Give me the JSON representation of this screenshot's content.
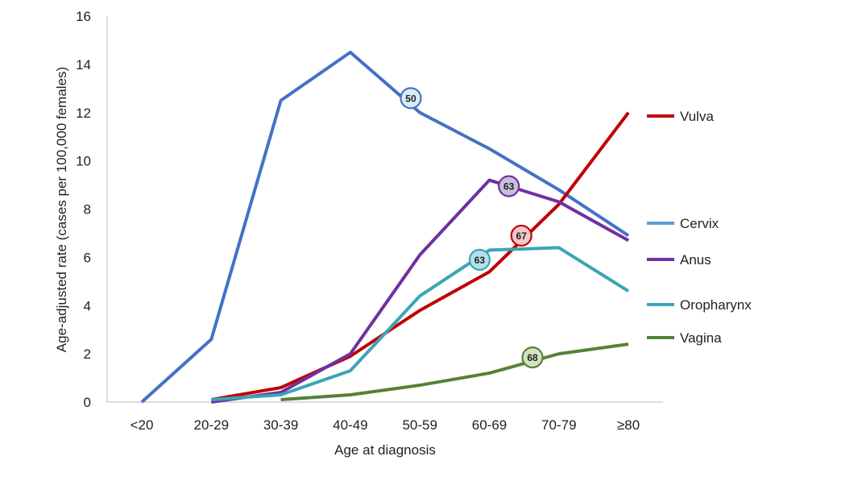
{
  "chart_data": {
    "type": "line",
    "title": "",
    "xlabel": "Age at diagnosis",
    "ylabel": "Age-adjusted rate (cases per 100,000 females)",
    "categories": [
      "<20",
      "20-29",
      "30-39",
      "40-49",
      "50-59",
      "60-69",
      "70-79",
      "≥80"
    ],
    "ylim": [
      0,
      16
    ],
    "yticks": [
      "0",
      "2",
      "4",
      "6",
      "8",
      "10",
      "12",
      "14",
      "16"
    ],
    "grid": false,
    "legend_placement": "right",
    "series": [
      {
        "name": "Cervix",
        "color": "#4472C4",
        "legend_color": "#5B9BD5",
        "marker_fill": "#DDEBF7",
        "values": [
          0,
          2.6,
          12.5,
          14.5,
          12.0,
          10.5,
          8.8,
          6.9
        ],
        "median": {
          "label": "50",
          "x_index": 3.87,
          "value": 12.6
        }
      },
      {
        "name": "Vulva",
        "color": "#C00000",
        "legend_color": "#C00000",
        "marker_fill": "#F4C7C9",
        "values": [
          null,
          0.1,
          0.6,
          1.9,
          3.8,
          5.4,
          8.2,
          12.0
        ],
        "median": {
          "label": "67",
          "x_index": 5.46,
          "value": 6.9
        }
      },
      {
        "name": "Anus",
        "color": "#7030A0",
        "legend_color": "#7030A0",
        "marker_fill": "#C9BEDD",
        "values": [
          null,
          0.0,
          0.4,
          2.0,
          6.1,
          9.2,
          8.3,
          6.7
        ],
        "median": {
          "label": "63",
          "x_index": 5.28,
          "value": 8.95
        }
      },
      {
        "name": "Oropharynx",
        "color": "#3BA5B5",
        "legend_color": "#3BA5B5",
        "marker_fill": "#B5E0EA",
        "values": [
          null,
          0.1,
          0.3,
          1.3,
          4.4,
          6.3,
          6.4,
          4.6
        ],
        "median": {
          "label": "63",
          "x_index": 4.86,
          "value": 5.9
        }
      },
      {
        "name": "Vagina",
        "color": "#548235",
        "legend_color": "#548235",
        "marker_fill": "#D3E3C0",
        "values": [
          null,
          null,
          0.1,
          0.3,
          0.7,
          1.2,
          2.0,
          2.4
        ],
        "median": {
          "label": "68",
          "x_index": 5.62,
          "value": 1.85
        }
      }
    ]
  }
}
